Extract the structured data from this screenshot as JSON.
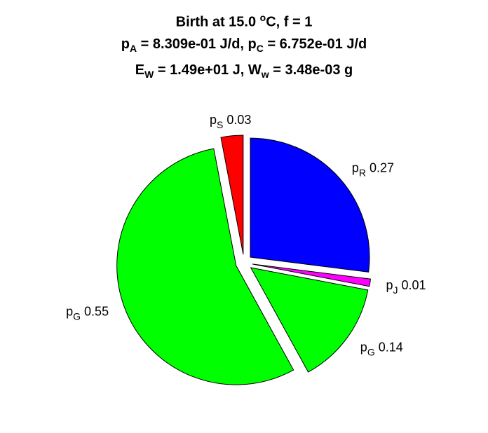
{
  "title": {
    "line1": {
      "prefix": "Birth at 15.0 ",
      "degree_sup": "o",
      "suffix": "C, f = 1"
    },
    "line2": {
      "a_sym": "p",
      "a_sub": "A",
      "a_val": " = 8.309e-01 J/d, ",
      "c_sym": "p",
      "c_sub": "C",
      "c_val": " = 6.752e-01 J/d"
    },
    "line3": {
      "e_sym": "E",
      "e_sub": "W",
      "e_val": " = 1.49e+01 J, ",
      "w_sym": "W",
      "w_sub": "w",
      "w_val": " = 3.48e-03 g"
    }
  },
  "chart_data": {
    "type": "pie",
    "slices": [
      {
        "symbol": "p",
        "subscript": "R",
        "value": 0.27,
        "value_label": "0.27",
        "color": "#0000ff"
      },
      {
        "symbol": "p",
        "subscript": "J",
        "value": 0.01,
        "value_label": "0.01",
        "color": "#ff00ff"
      },
      {
        "symbol": "p",
        "subscript": "G",
        "value": 0.14,
        "value_label": "0.14",
        "color": "#00ff00"
      },
      {
        "symbol": "p",
        "subscript": "G",
        "value": 0.55,
        "value_label": "0.55",
        "color": "#00ff00"
      },
      {
        "symbol": "p",
        "subscript": "S",
        "value": 0.03,
        "value_label": "0.03",
        "color": "#ff0000"
      }
    ],
    "start": "12 o'clock",
    "direction": "clockwise",
    "exploded": true,
    "legend": "none",
    "edge_color": "#000000"
  }
}
